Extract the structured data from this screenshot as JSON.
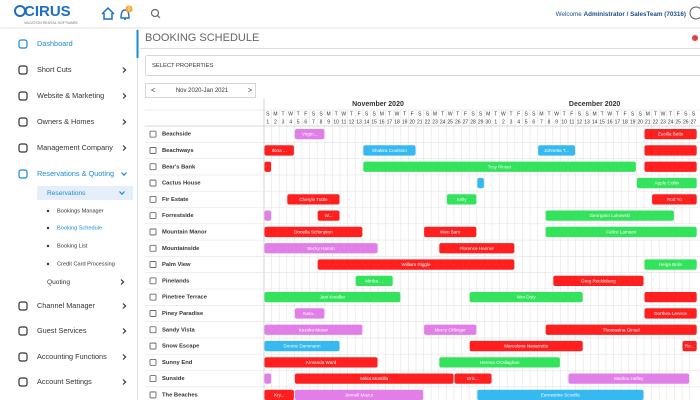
{
  "header": {
    "logo": "CIRUS",
    "tagline": "VACATION RENTAL SOFTWARE",
    "notifications": 0,
    "welcome": "Welcome",
    "user": "Administrator / SalesTeam (70316)"
  },
  "nav": [
    {
      "label": "Dashboard",
      "level": 0,
      "active": true
    },
    {
      "label": "Short Cuts",
      "level": 0,
      "arrow": ">"
    },
    {
      "label": "Website & Marketing",
      "level": 0,
      "arrow": ">"
    },
    {
      "label": "Owners & Homes",
      "level": 0,
      "arrow": ">"
    },
    {
      "label": "Management Company",
      "level": 0,
      "arrow": ">"
    },
    {
      "label": "Reservations & Quoting",
      "level": 0,
      "active": true,
      "arrow": "v"
    },
    {
      "label": "Reservations",
      "level": 1,
      "active": true,
      "arrow": "v"
    },
    {
      "label": "Bookings Manager",
      "level": 2
    },
    {
      "label": "Booking Schedule",
      "level": 2,
      "active": true
    },
    {
      "label": "Booking List",
      "level": 2
    },
    {
      "label": "Credit Card Processing",
      "level": 2
    },
    {
      "label": "Quoting",
      "level": 1,
      "arrow": ">"
    },
    {
      "label": "Channel Manager",
      "level": 0,
      "arrow": ">"
    },
    {
      "label": "Guest Services",
      "level": 0,
      "arrow": ">"
    },
    {
      "label": "Accounting Functions",
      "level": 0,
      "arrow": ">"
    },
    {
      "label": "Account Settings",
      "level": 0,
      "arrow": ">"
    }
  ],
  "page": {
    "title": "BOOKING SCHEDULE",
    "select": "SELECT PROPERTIES",
    "range": "Nov 2020-Jan 2021",
    "prev": "<",
    "next": ">"
  },
  "months": [
    {
      "name": "November 2020",
      "weekdays": [
        "S",
        "M",
        "T",
        "W",
        "T",
        "F",
        "S",
        "S",
        "M",
        "T",
        "W",
        "T",
        "F",
        "S",
        "S",
        "M",
        "T",
        "W",
        "T",
        "F",
        "S",
        "S",
        "M",
        "T",
        "W",
        "T",
        "F",
        "S",
        "S",
        "M"
      ],
      "days": [
        1,
        2,
        3,
        4,
        5,
        6,
        7,
        8,
        9,
        10,
        11,
        12,
        13,
        14,
        15,
        16,
        17,
        18,
        19,
        20,
        21,
        22,
        23,
        24,
        25,
        26,
        27,
        28,
        29,
        30
      ]
    },
    {
      "name": "December 2020",
      "weekdays": [
        "T",
        "W",
        "T",
        "F",
        "S",
        "S",
        "M",
        "T",
        "W",
        "T",
        "F",
        "S",
        "S",
        "M",
        "T",
        "W",
        "T",
        "F",
        "S",
        "S",
        "M",
        "T",
        "W",
        "T",
        "F",
        "S",
        "S"
      ],
      "days": [
        1,
        2,
        3,
        4,
        5,
        6,
        7,
        8,
        9,
        10,
        11,
        12,
        13,
        14,
        15,
        16,
        17,
        18,
        19,
        20,
        21,
        22,
        23,
        24,
        25,
        26,
        27
      ]
    }
  ],
  "properties": [
    {
      "name": "Beachside",
      "bookings": [
        {
          "guest": "Virgin...",
          "color": "#e27ee8",
          "start": "2020-11-05",
          "end": "2020-11-08"
        },
        {
          "guest": "Eucilla Betts",
          "color": "#ff1f1f",
          "start": "2020-12-21",
          "end": "2020-12-27"
        }
      ]
    },
    {
      "name": "Beachways",
      "bookings": [
        {
          "guest": "Ilona ...",
          "color": "#ff1f1f",
          "start": "2020-11-01",
          "end": "2020-11-04"
        },
        {
          "guest": "Shakira Coulston",
          "color": "#35b9f0",
          "start": "2020-11-14",
          "end": "2020-11-20"
        },
        {
          "guest": "Johnetta T...",
          "color": "#35b9f0",
          "start": "2020-12-07",
          "end": "2020-12-11"
        },
        {
          "color": "#ff1f1f",
          "start": "2020-12-21",
          "end": "2020-12-27"
        }
      ]
    },
    {
      "name": "Bear's Bank",
      "bookings": [
        {
          "color": "#ff1f1f",
          "start": "2020-11-01",
          "end": "2020-11-01"
        },
        {
          "guest": "Troy Pinner",
          "color": "#33e35c",
          "start": "2020-11-14",
          "end": "2020-12-19"
        },
        {
          "color": "#ff1f1f",
          "start": "2020-12-21",
          "end": "2020-12-27"
        }
      ]
    },
    {
      "name": "Cactus House",
      "bookings": [
        {
          "color": "#35b9f0",
          "start": "2020-11-29",
          "end": "2020-11-29"
        },
        {
          "guest": "Apple Collin",
          "color": "#33e35c",
          "start": "2020-12-20",
          "end": "2020-12-27"
        }
      ]
    },
    {
      "name": "Fir Estate",
      "bookings": [
        {
          "guest": "Cheryle Tuttle",
          "color": "#ff1f1f",
          "start": "2020-11-04",
          "end": "2020-11-10"
        },
        {
          "guest": "Kelly",
          "color": "#33e35c",
          "start": "2020-11-25",
          "end": "2020-11-28"
        },
        {
          "guest": "Rod Yo",
          "color": "#ff1f1f",
          "start": "2020-12-22",
          "end": "2020-12-27"
        }
      ]
    },
    {
      "name": "Forrestside",
      "bookings": [
        {
          "color": "#e27ee8",
          "start": "2020-11-01",
          "end": "2020-11-01"
        },
        {
          "guest": "W...",
          "color": "#ff1f1f",
          "start": "2020-11-08",
          "end": "2020-11-10"
        },
        {
          "guest": "Georgann Lukowski",
          "color": "#33e35c",
          "start": "2020-12-08",
          "end": "2020-12-24"
        }
      ]
    },
    {
      "name": "Mountain Manor",
      "bookings": [
        {
          "guest": "Donella Schimpton",
          "color": "#ff1f1f",
          "start": "2020-11-01",
          "end": "2020-11-13"
        },
        {
          "guest": "Wen Baro",
          "color": "#ff1f1f",
          "start": "2020-11-22",
          "end": "2020-11-28"
        },
        {
          "guest": "Felice Lamson",
          "color": "#33e35c",
          "start": "2020-12-08",
          "end": "2020-12-27"
        }
      ]
    },
    {
      "name": "Mountainside",
      "bookings": [
        {
          "guest": "Becky Hamm",
          "color": "#e27ee8",
          "start": "2020-11-01",
          "end": "2020-11-15"
        },
        {
          "guest": "Florence Hanner",
          "color": "#ff1f1f",
          "start": "2020-11-24",
          "end": "2020-12-03"
        }
      ]
    },
    {
      "name": "Palm View",
      "bookings": [
        {
          "guest": "William Riggle",
          "color": "#ff1f1f",
          "start": "2020-11-08",
          "end": "2020-12-03"
        },
        {
          "guest": "Helga Bolin",
          "color": "#33e35c",
          "start": "2020-12-21",
          "end": "2020-12-27"
        }
      ]
    },
    {
      "name": "Pinelands",
      "bookings": [
        {
          "guest": "Mirtha ...",
          "color": "#33e35c",
          "start": "2020-11-13",
          "end": "2020-11-17"
        },
        {
          "guest": "Greg Reckleberg",
          "color": "#ff1f1f",
          "start": "2020-12-09",
          "end": "2020-12-20"
        }
      ]
    },
    {
      "name": "Pinetree Terrace",
      "bookings": [
        {
          "guest": "Jani Kreidler",
          "color": "#33e35c",
          "start": "2020-11-01",
          "end": "2020-11-18"
        },
        {
          "guest": "Wm Doty",
          "color": "#33e35c",
          "start": "2020-11-28",
          "end": "2020-12-12"
        },
        {
          "color": "#ff1f1f",
          "start": "2020-12-21",
          "end": "2020-12-27"
        }
      ]
    },
    {
      "name": "Piney Paradise",
      "bookings": [
        {
          "guest": "Susa...",
          "color": "#e27ee8",
          "start": "2020-11-05",
          "end": "2020-11-08"
        },
        {
          "guest": "Dorthea Lennox",
          "color": "#ff1f1f",
          "start": "2020-12-21",
          "end": "2020-12-27"
        }
      ]
    },
    {
      "name": "Sandy Vista",
      "bookings": [
        {
          "guest": "Kazuko Moser",
          "color": "#e27ee8",
          "start": "2020-11-01",
          "end": "2020-11-13"
        },
        {
          "guest": "Mercy Ohlinger",
          "color": "#e27ee8",
          "start": "2020-11-22",
          "end": "2020-11-28"
        },
        {
          "guest": "Thomasina Ginsel",
          "color": "#ff1f1f",
          "start": "2020-12-08",
          "end": "2020-12-27"
        }
      ]
    },
    {
      "name": "Snow Escape",
      "bookings": [
        {
          "guest": "Donnie Dammann",
          "color": "#35b9f0",
          "start": "2020-11-01",
          "end": "2020-11-10"
        },
        {
          "guest": "Marcelene Navarrette",
          "color": "#ff1f1f",
          "start": "2020-11-28",
          "end": "2020-12-12"
        },
        {
          "guest": "Ro...",
          "color": "#ff1f1f",
          "start": "2020-12-26",
          "end": "2020-12-27"
        }
      ]
    },
    {
      "name": "Sunny End",
      "bookings": [
        {
          "guest": "Armanda Ward",
          "color": "#ff1f1f",
          "start": "2020-11-01",
          "end": "2020-11-15"
        },
        {
          "guest": "Herena Ocallaghan",
          "color": "#33e35c",
          "start": "2020-11-24",
          "end": "2020-12-09"
        }
      ]
    },
    {
      "name": "Sunside",
      "bookings": [
        {
          "color": "#e27ee8",
          "start": "2020-11-01",
          "end": "2020-11-01"
        },
        {
          "guest": "Mikia Montilla",
          "color": "#ff1f1f",
          "start": "2020-11-05",
          "end": "2020-11-25"
        },
        {
          "guest": "Eric...",
          "color": "#ff1f1f",
          "start": "2020-11-26",
          "end": "2020-11-30"
        },
        {
          "guest": "Marilou Hafley",
          "color": "#e27ee8",
          "start": "2020-12-11",
          "end": "2020-12-26"
        }
      ]
    },
    {
      "name": "The Beaches",
      "bookings": [
        {
          "guest": "Kry...",
          "color": "#ff1f1f",
          "start": "2020-11-01",
          "end": "2020-11-04"
        },
        {
          "guest": "Jennell Mazur",
          "color": "#e27ee8",
          "start": "2020-11-05",
          "end": "2020-11-21"
        },
        {
          "guest": "Earnestine Scoville",
          "color": "#35b9f0",
          "start": "2020-11-29",
          "end": "2020-12-20"
        }
      ]
    }
  ]
}
